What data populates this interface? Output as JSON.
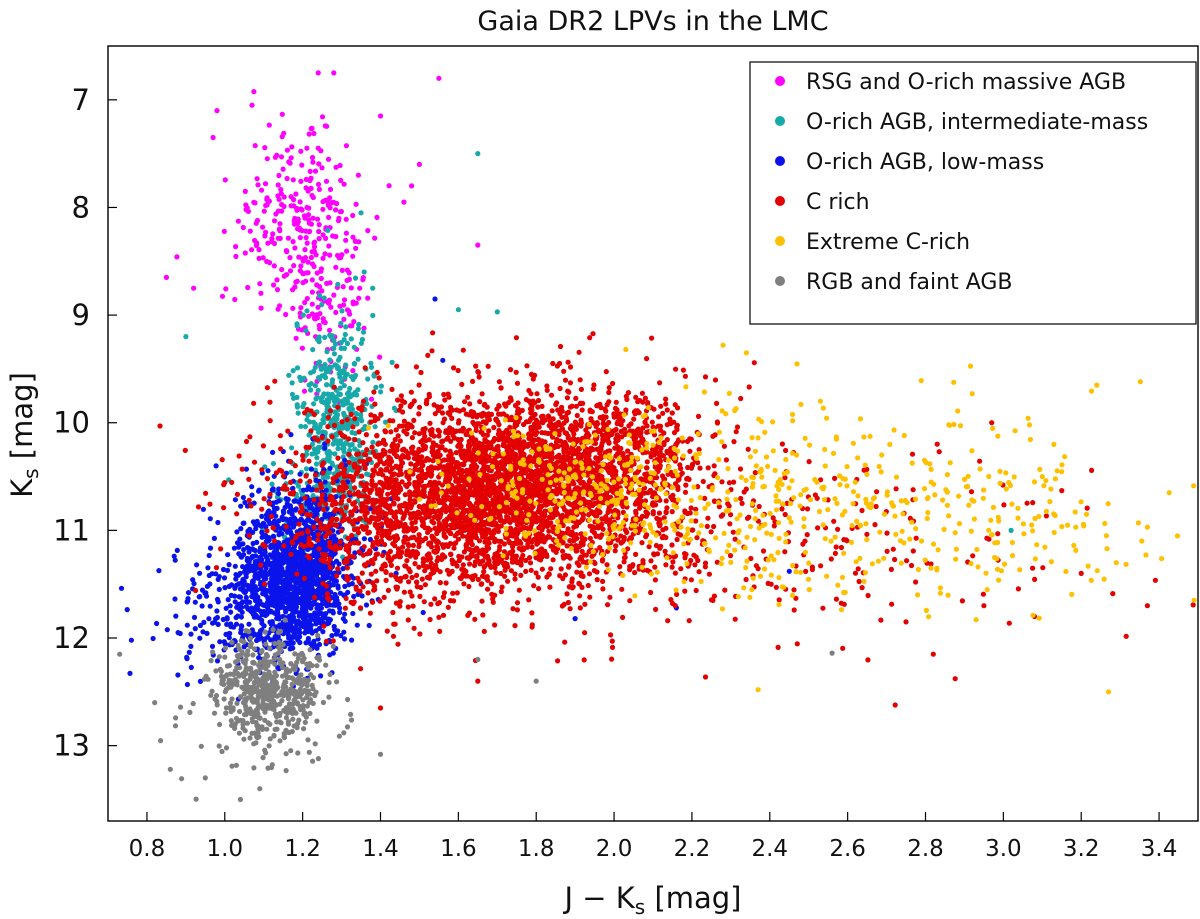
{
  "chart_data": {
    "type": "scatter",
    "title": "Gaia DR2 LPVs in the LMC",
    "xlabel": "J − K",
    "xlabel_sub": "s",
    "xlabel_unit": "[mag]",
    "ylabel": "K",
    "ylabel_sub": "s",
    "ylabel_unit": "[mag]",
    "xlim": [
      0.7,
      3.5
    ],
    "ylim": [
      13.7,
      6.5
    ],
    "y_inverted": true,
    "grid": false,
    "legend_position": "top-right",
    "xticks": [
      "0.8",
      "1.0",
      "1.2",
      "1.4",
      "1.6",
      "1.8",
      "2.0",
      "2.2",
      "2.4",
      "2.6",
      "2.8",
      "3.0",
      "3.2",
      "3.4"
    ],
    "yticks": [
      "7",
      "8",
      "9",
      "10",
      "11",
      "12",
      "13"
    ],
    "series": [
      {
        "name": "RSG and O-rich massive AGB",
        "color": "#ff00ff",
        "clusters": [
          {
            "n": 300,
            "cx": 1.2,
            "cy": 8.2,
            "sx": 0.08,
            "sy": 0.55
          },
          {
            "n": 60,
            "cx": 1.28,
            "cy": 9.1,
            "sx": 0.05,
            "sy": 0.35
          }
        ],
        "points": [
          [
            1.24,
            6.75
          ],
          [
            1.28,
            6.75
          ],
          [
            1.55,
            6.8
          ],
          [
            1.07,
            7.05
          ],
          [
            0.98,
            7.1
          ],
          [
            1.4,
            7.15
          ],
          [
            0.97,
            7.35
          ],
          [
            1.5,
            7.6
          ],
          [
            1.48,
            7.8
          ],
          [
            0.85,
            8.65
          ],
          [
            1.65,
            8.35
          ],
          [
            0.92,
            8.75
          ],
          [
            1.46,
            7.95
          ]
        ]
      },
      {
        "name": "O-rich AGB, intermediate-mass",
        "color": "#17a9a9",
        "clusters": [
          {
            "n": 450,
            "cx": 1.29,
            "cy": 9.95,
            "sx": 0.05,
            "sy": 0.45
          },
          {
            "n": 120,
            "cx": 1.25,
            "cy": 10.7,
            "sx": 0.06,
            "sy": 0.3
          }
        ],
        "points": [
          [
            1.65,
            7.5
          ],
          [
            0.9,
            9.2
          ],
          [
            1.6,
            8.95
          ],
          [
            1.7,
            8.97
          ],
          [
            1.38,
            8.75
          ],
          [
            1.01,
            10.53
          ],
          [
            3.02,
            11.0
          ],
          [
            1.35,
            8.05
          ]
        ]
      },
      {
        "name": "O-rich AGB, low-mass",
        "color": "#0a14ea",
        "clusters": [
          {
            "n": 1300,
            "cx": 1.17,
            "cy": 11.5,
            "sx": 0.07,
            "sy": 0.33
          },
          {
            "n": 300,
            "cx": 1.22,
            "cy": 11.0,
            "sx": 0.08,
            "sy": 0.35
          },
          {
            "n": 150,
            "cx": 1.0,
            "cy": 11.8,
            "sx": 0.12,
            "sy": 0.3
          }
        ],
        "points": [
          [
            0.76,
            12.02
          ],
          [
            0.88,
            11.95
          ],
          [
            1.54,
            8.85
          ],
          [
            1.56,
            9.42
          ],
          [
            1.9,
            11.82
          ],
          [
            2.16,
            11.72
          ],
          [
            2.45,
            11.38
          ],
          [
            1.44,
            11.4
          ]
        ]
      },
      {
        "name": "C rich",
        "color": "#e20000",
        "clusters": [
          {
            "n": 3200,
            "cx": 1.7,
            "cy": 10.65,
            "sx": 0.24,
            "sy": 0.42
          },
          {
            "n": 700,
            "cx": 1.9,
            "cy": 10.3,
            "sx": 0.17,
            "sy": 0.3
          },
          {
            "n": 300,
            "cx": 1.45,
            "cy": 11.1,
            "sx": 0.12,
            "sy": 0.4
          },
          {
            "n": 250,
            "cx": 2.4,
            "cy": 11.2,
            "sx": 0.35,
            "sy": 0.45
          }
        ],
        "points": [
          [
            1.65,
            12.4
          ],
          [
            1.4,
            12.65
          ],
          [
            2.97,
            10.0
          ],
          [
            3.37,
            11.7
          ],
          [
            3.2,
            11.4
          ],
          [
            3.08,
            11.8
          ],
          [
            2.82,
            12.15
          ],
          [
            2.75,
            11.85
          ],
          [
            2.95,
            11.7
          ]
        ]
      },
      {
        "name": "Extreme C-rich",
        "color": "#ffc000",
        "clusters": [
          {
            "n": 200,
            "cx": 1.9,
            "cy": 10.6,
            "sx": 0.15,
            "sy": 0.3
          },
          {
            "n": 420,
            "cx": 2.5,
            "cy": 10.75,
            "sx": 0.35,
            "sy": 0.45
          },
          {
            "n": 80,
            "cx": 3.05,
            "cy": 11.0,
            "sx": 0.18,
            "sy": 0.45
          }
        ],
        "points": [
          [
            2.28,
            9.28
          ],
          [
            2.34,
            9.35
          ],
          [
            2.03,
            9.32
          ],
          [
            3.24,
            9.65
          ],
          [
            2.92,
            9.73
          ],
          [
            3.29,
            11.3
          ],
          [
            3.49,
            11.65
          ],
          [
            3.37,
            10.97
          ],
          [
            3.27,
            12.5
          ],
          [
            2.37,
            12.48
          ],
          [
            3.1,
            10.5
          ],
          [
            2.93,
            11.83
          ],
          [
            2.48,
            9.83
          ],
          [
            2.53,
            9.8
          ],
          [
            3.08,
            10.55
          ]
        ]
      },
      {
        "name": "RGB and faint AGB",
        "color": "#7f7f7f",
        "clusters": [
          {
            "n": 420,
            "cx": 1.1,
            "cy": 12.42,
            "sx": 0.07,
            "sy": 0.2
          },
          {
            "n": 140,
            "cx": 1.12,
            "cy": 12.7,
            "sx": 0.09,
            "sy": 0.25
          }
        ],
        "points": [
          [
            0.73,
            12.15
          ],
          [
            0.86,
            13.22
          ],
          [
            0.95,
            13.3
          ],
          [
            1.04,
            13.5
          ],
          [
            1.09,
            13.4
          ],
          [
            2.56,
            12.14
          ],
          [
            1.8,
            12.4
          ],
          [
            1.65,
            12.2
          ],
          [
            1.4,
            13.08
          ],
          [
            0.82,
            12.6
          ]
        ]
      }
    ]
  }
}
